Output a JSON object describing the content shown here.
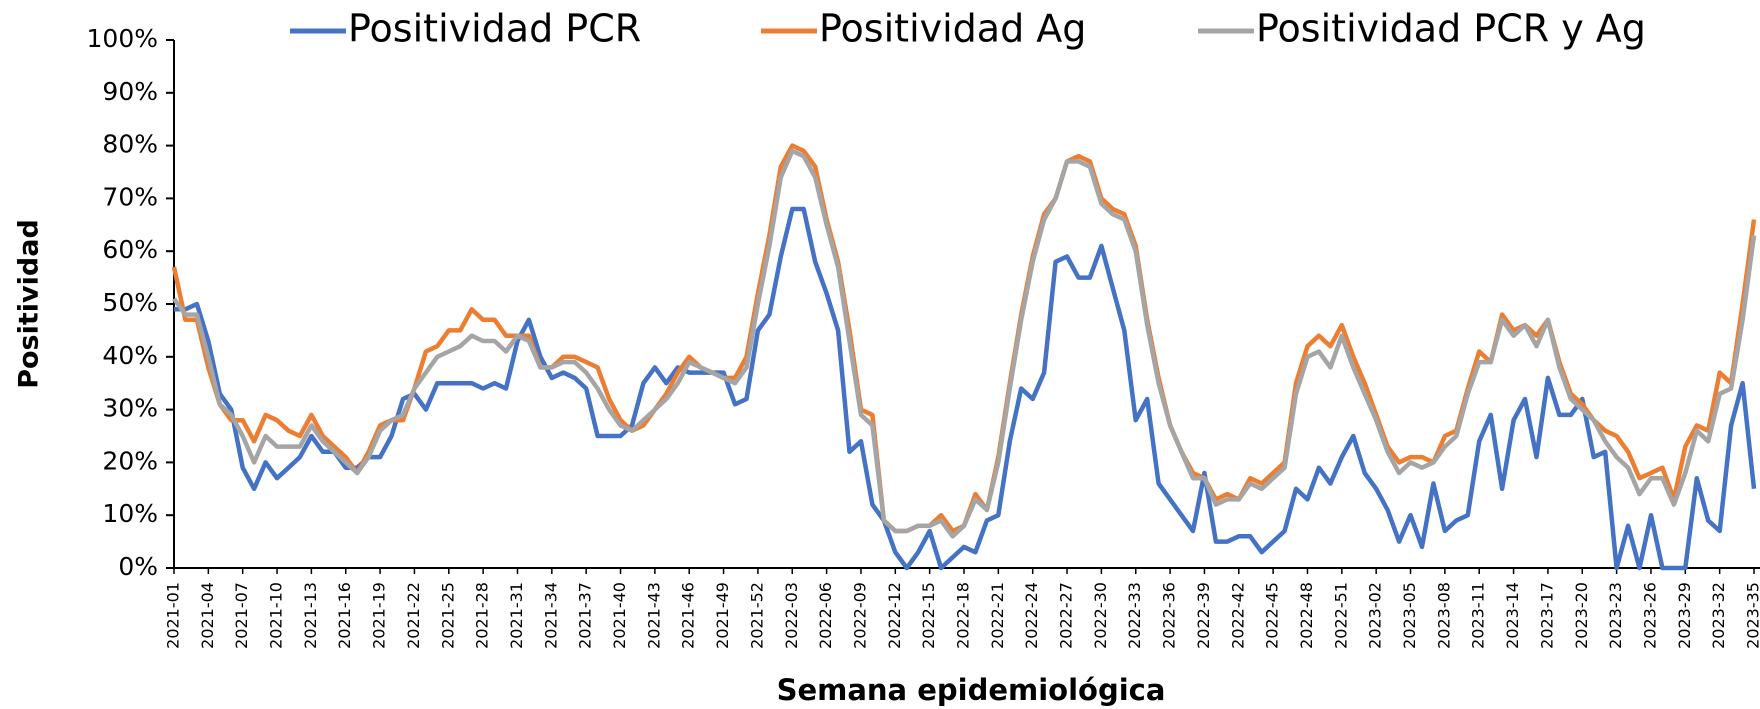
{
  "chart_data": {
    "type": "line",
    "x_label": "Semana epidemiológica",
    "y_label": "Positividad",
    "categories": [
      "2021-01",
      null,
      null,
      "2021-04",
      null,
      null,
      "2021-07",
      null,
      null,
      "2021-10",
      null,
      null,
      "2021-13",
      null,
      null,
      "2021-16",
      null,
      null,
      "2021-19",
      null,
      null,
      "2021-22",
      null,
      null,
      "2021-25",
      null,
      null,
      "2021-28",
      null,
      null,
      "2021-31",
      null,
      null,
      "2021-34",
      null,
      null,
      "2021-37",
      null,
      null,
      "2021-40",
      null,
      null,
      "2021-43",
      null,
      null,
      "2021-46",
      null,
      null,
      "2021-49",
      null,
      null,
      "2021-52",
      null,
      null,
      "2022-03",
      null,
      null,
      "2022-06",
      null,
      null,
      "2022-09",
      null,
      null,
      "2022-12",
      null,
      null,
      "2022-15",
      null,
      null,
      "2022-18",
      null,
      null,
      "2022-21",
      null,
      null,
      "2022-24",
      null,
      null,
      "2022-27",
      null,
      null,
      "2022-30",
      null,
      null,
      "2022-33",
      null,
      null,
      "2022-36",
      null,
      null,
      "2022-39",
      null,
      null,
      "2022-42",
      null,
      null,
      "2022-45",
      null,
      null,
      "2022-48",
      null,
      null,
      "2022-51",
      null,
      null,
      "2023-02",
      null,
      null,
      "2023-05",
      null,
      null,
      "2023-08",
      null,
      null,
      "2023-11",
      null,
      null,
      "2023-14",
      null,
      null,
      "2023-17",
      null,
      null,
      "2023-20",
      null,
      null,
      "2023-23",
      null,
      null,
      "2023-26",
      null,
      null,
      "2023-29",
      null,
      null,
      "2023-32",
      null,
      null,
      "2023-35"
    ],
    "series": [
      {
        "name": "Positividad PCR",
        "color": "#4472c4",
        "values": [
          49,
          49,
          50,
          43,
          33,
          30,
          19,
          15,
          20,
          17,
          19,
          21,
          25,
          22,
          22,
          19,
          19,
          21,
          21,
          25,
          32,
          33,
          30,
          35,
          35,
          35,
          35,
          34,
          35,
          34,
          43,
          47,
          40,
          36,
          37,
          36,
          34,
          25,
          25,
          25,
          27,
          35,
          38,
          35,
          38,
          37,
          37,
          37,
          37,
          31,
          32,
          45,
          48,
          59,
          68,
          68,
          58,
          52,
          45,
          22,
          24,
          12,
          9,
          3,
          0,
          3,
          7,
          0,
          2,
          4,
          3,
          9,
          10,
          24,
          34,
          32,
          37,
          58,
          59,
          55,
          55,
          61,
          53,
          45,
          28,
          32,
          16,
          13,
          10,
          7,
          18,
          5,
          5,
          6,
          6,
          3,
          5,
          7,
          15,
          13,
          19,
          16,
          21,
          25,
          18,
          15,
          11,
          5,
          10,
          4,
          16,
          7,
          9,
          10,
          24,
          29,
          15,
          28,
          32,
          21,
          36,
          29,
          29,
          32,
          21,
          22,
          0,
          8,
          0,
          10,
          0,
          0,
          0,
          17,
          9,
          7,
          27,
          35,
          15
        ]
      },
      {
        "name": "Positividad Ag",
        "color": "#ed7d31",
        "values": [
          57,
          47,
          47,
          38,
          31,
          28,
          28,
          24,
          29,
          28,
          26,
          25,
          29,
          25,
          23,
          21,
          18,
          22,
          27,
          28,
          28,
          34,
          41,
          42,
          45,
          45,
          49,
          47,
          47,
          44,
          44,
          44,
          38,
          38,
          40,
          40,
          39,
          38,
          32,
          28,
          26,
          27,
          30,
          33,
          37,
          40,
          38,
          37,
          36,
          36,
          40,
          52,
          63,
          76,
          80,
          79,
          76,
          66,
          58,
          45,
          30,
          29,
          9,
          7,
          7,
          8,
          8,
          10,
          7,
          8,
          14,
          11,
          21,
          35,
          48,
          59,
          67,
          70,
          77,
          78,
          77,
          70,
          68,
          67,
          61,
          47,
          36,
          27,
          22,
          18,
          17,
          13,
          14,
          13,
          17,
          16,
          18,
          20,
          35,
          42,
          44,
          42,
          46,
          40,
          35,
          29,
          23,
          20,
          21,
          21,
          20,
          25,
          26,
          34,
          41,
          39,
          48,
          45,
          46,
          44,
          47,
          39,
          33,
          31,
          28,
          26,
          25,
          22,
          17,
          18,
          19,
          13,
          23,
          27,
          26,
          37,
          35,
          50,
          66
        ]
      },
      {
        "name": "Positividad PCR y Ag",
        "color": "#a5a5a5",
        "values": [
          51,
          48,
          48,
          40,
          31,
          29,
          25,
          20,
          25,
          23,
          23,
          23,
          27,
          24,
          22,
          20,
          18,
          21,
          26,
          28,
          29,
          34,
          37,
          40,
          41,
          42,
          44,
          43,
          43,
          41,
          44,
          43,
          38,
          38,
          39,
          39,
          37,
          34,
          30,
          27,
          26,
          28,
          30,
          32,
          35,
          39,
          38,
          37,
          36,
          35,
          38,
          50,
          61,
          74,
          79,
          78,
          74,
          65,
          57,
          43,
          29,
          27,
          9,
          7,
          7,
          8,
          8,
          9,
          6,
          8,
          13,
          11,
          20,
          34,
          47,
          58,
          66,
          70,
          77,
          77,
          76,
          69,
          67,
          66,
          60,
          46,
          35,
          27,
          22,
          17,
          17,
          12,
          13,
          13,
          16,
          15,
          17,
          19,
          33,
          40,
          41,
          38,
          44,
          38,
          33,
          28,
          22,
          18,
          20,
          19,
          20,
          23,
          25,
          33,
          39,
          39,
          47,
          44,
          46,
          42,
          47,
          38,
          32,
          30,
          28,
          24,
          21,
          19,
          14,
          17,
          17,
          12,
          18,
          26,
          24,
          33,
          34,
          47,
          63
        ]
      }
    ],
    "ylim": [
      0,
      100
    ],
    "yticks": [
      {
        "value": 0,
        "label": "0%"
      },
      {
        "value": 10,
        "label": "10%"
      },
      {
        "value": 20,
        "label": "20%"
      },
      {
        "value": 30,
        "label": "30%"
      },
      {
        "value": 40,
        "label": "40%"
      },
      {
        "value": 50,
        "label": "50%"
      },
      {
        "value": 60,
        "label": "60%"
      },
      {
        "value": 70,
        "label": "70%"
      },
      {
        "value": 80,
        "label": "80%"
      },
      {
        "value": 90,
        "label": "90%"
      },
      {
        "value": 100,
        "label": "100%"
      }
    ],
    "grid": false
  }
}
